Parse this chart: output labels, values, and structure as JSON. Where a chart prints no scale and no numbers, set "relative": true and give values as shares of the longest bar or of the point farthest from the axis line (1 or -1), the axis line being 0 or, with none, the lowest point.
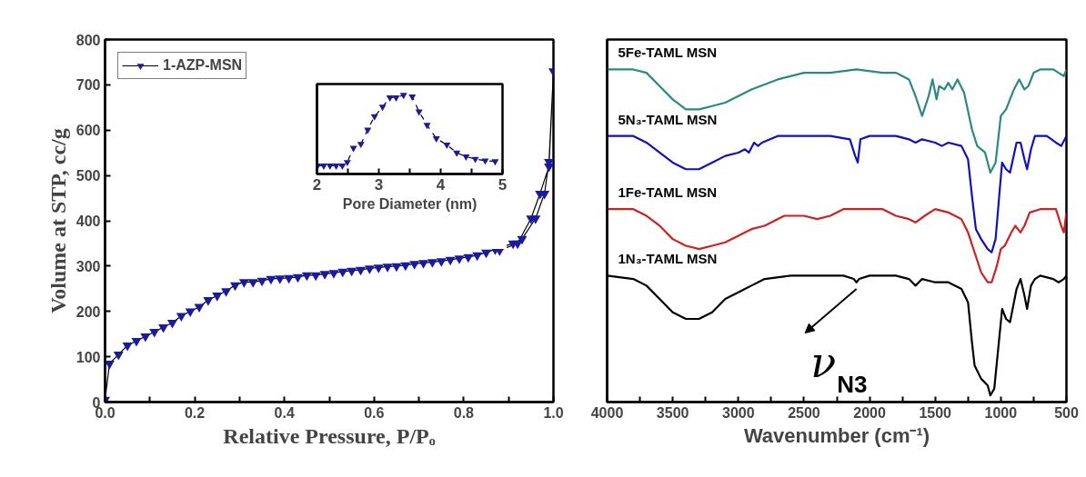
{
  "chart_data": [
    {
      "type": "line",
      "xlabel": "Relative Pressure, P/Pₒ",
      "ylabel": "Volume at STP, cc/g",
      "x": [
        0.0,
        0.01,
        0.03,
        0.05,
        0.07,
        0.09,
        0.11,
        0.13,
        0.15,
        0.17,
        0.19,
        0.21,
        0.23,
        0.25,
        0.27,
        0.29,
        0.31,
        0.33,
        0.35,
        0.37,
        0.39,
        0.41,
        0.43,
        0.45,
        0.47,
        0.49,
        0.51,
        0.53,
        0.55,
        0.57,
        0.59,
        0.61,
        0.63,
        0.65,
        0.67,
        0.69,
        0.71,
        0.73,
        0.75,
        0.77,
        0.79,
        0.81,
        0.83,
        0.85,
        0.87,
        0.91,
        0.93,
        0.96,
        0.98,
        0.99,
        1.0,
        0.99,
        0.97,
        0.95,
        0.92,
        0.88
      ],
      "series": [
        {
          "name": "1-AZP-MSN",
          "color": "#1a1a9c",
          "values": [
            5,
            85,
            105,
            125,
            135,
            145,
            155,
            165,
            175,
            190,
            200,
            210,
            225,
            235,
            245,
            258,
            265,
            265,
            268,
            272,
            273,
            274,
            276,
            280,
            280,
            283,
            285,
            288,
            290,
            292,
            295,
            297,
            299,
            300,
            302,
            305,
            307,
            309,
            311,
            314,
            317,
            320,
            324,
            330,
            337,
            350,
            360,
            405,
            460,
            530,
            730,
            520,
            460,
            405,
            350,
            335
          ]
        }
      ],
      "xlim": [
        0,
        1.0
      ],
      "ylim": [
        0,
        800
      ],
      "xticks": [
        {
          "value": 0,
          "label": "0.0"
        },
        {
          "value": 0.1,
          "label": null
        },
        0.2,
        {
          "value": 0.3,
          "label": null
        },
        0.4,
        {
          "value": 0.5,
          "label": null
        },
        0.6,
        {
          "value": 0.7,
          "label": null
        },
        0.8,
        {
          "value": 0.9,
          "label": null
        },
        {
          "value": 1.0,
          "label": "1.0"
        }
      ],
      "yticks": [
        0,
        100,
        200,
        300,
        400,
        500,
        600,
        700,
        800
      ],
      "grid": false,
      "legend": "top left",
      "marker": "triangle",
      "line_style": "solid"
    },
    {
      "type": "line",
      "xlabel": "Pore Diameter (nm)",
      "relative": true,
      "tick_labels": "x",
      "x": [
        2.01,
        2.11,
        2.21,
        2.31,
        2.41,
        2.49,
        2.59,
        2.71,
        2.82,
        2.93,
        3.06,
        3.18,
        3.28,
        3.4,
        3.54,
        3.65,
        3.78,
        3.93,
        4.1,
        4.26,
        4.41,
        4.56,
        4.72,
        4.88
      ],
      "series": [
        {
          "color": "#1a1a9c",
          "values": [
            0.106,
            0.106,
            0.106,
            0.106,
            0.106,
            0.15,
            0.33,
            0.38,
            0.56,
            0.73,
            0.85,
            0.97,
            0.97,
            1.0,
            0.98,
            0.79,
            0.62,
            0.45,
            0.37,
            0.27,
            0.22,
            0.19,
            0.17,
            0.16
          ]
        }
      ],
      "xlim": [
        2,
        5
      ],
      "xticks": [
        2,
        {
          "value": 2.5,
          "label": null
        },
        3,
        {
          "value": 3.5,
          "label": null
        },
        4,
        {
          "value": 4.5,
          "label": null
        },
        5
      ],
      "grid": false,
      "marker": "triangle",
      "line_style": "dashed"
    },
    {
      "type": "line",
      "xlabel": "Wavenumber (cm⁻¹)",
      "relative": true,
      "tick_labels": "x",
      "xlim": [
        4000,
        500
      ],
      "xticks": [
        4000,
        {
          "value": 3750,
          "label": null
        },
        3500,
        {
          "value": 3250,
          "label": null
        },
        3000,
        {
          "value": 2750,
          "label": null
        },
        2500,
        {
          "value": 2250,
          "label": null
        },
        2000,
        {
          "value": 1750,
          "label": null
        },
        1500,
        {
          "value": 1250,
          "label": null
        },
        1000,
        {
          "value": 750,
          "label": null
        },
        500
      ],
      "series": [
        {
          "name": "5Fe-TAML MSN",
          "color": "#2a8a80",
          "x": [
            4000,
            3800,
            3700,
            3600,
            3500,
            3400,
            3300,
            3200,
            3100,
            3000,
            2900,
            2700,
            2500,
            2300,
            2100,
            1900,
            1800,
            1700,
            1650,
            1600,
            1550,
            1520,
            1490,
            1470,
            1430,
            1400,
            1370,
            1330,
            1280,
            1220,
            1180,
            1120,
            1080,
            1040,
            1000,
            960,
            900,
            860,
            820,
            790,
            750,
            700,
            600,
            560,
            520,
            500
          ],
          "values": [
            1.0,
            1.0,
            0.99,
            0.95,
            0.91,
            0.88,
            0.88,
            0.89,
            0.9,
            0.92,
            0.94,
            0.97,
            0.99,
            0.99,
            1.0,
            0.99,
            0.99,
            0.97,
            0.92,
            0.86,
            0.92,
            0.97,
            0.91,
            0.95,
            0.94,
            0.96,
            0.94,
            0.97,
            0.93,
            0.82,
            0.77,
            0.75,
            0.69,
            0.72,
            0.86,
            0.88,
            0.94,
            0.97,
            0.94,
            0.95,
            0.99,
            1.0,
            1.0,
            0.99,
            0.98,
            1.0
          ]
        },
        {
          "name": "5N₃-TAML MSN",
          "color": "#1010c0",
          "x": [
            4000,
            3800,
            3700,
            3600,
            3500,
            3400,
            3300,
            3200,
            3100,
            3000,
            2950,
            2920,
            2880,
            2850,
            2820,
            2700,
            2500,
            2300,
            2150,
            2110,
            2090,
            2070,
            2000,
            1800,
            1700,
            1650,
            1600,
            1500,
            1450,
            1400,
            1300,
            1250,
            1220,
            1190,
            1150,
            1100,
            1070,
            1040,
            1010,
            990,
            960,
            930,
            880,
            850,
            820,
            800,
            770,
            740,
            650,
            580,
            540,
            500
          ],
          "values": [
            0.8,
            0.8,
            0.78,
            0.75,
            0.72,
            0.7,
            0.7,
            0.72,
            0.74,
            0.75,
            0.76,
            0.75,
            0.78,
            0.77,
            0.78,
            0.8,
            0.8,
            0.8,
            0.79,
            0.74,
            0.72,
            0.79,
            0.8,
            0.8,
            0.79,
            0.78,
            0.79,
            0.78,
            0.77,
            0.78,
            0.77,
            0.73,
            0.62,
            0.52,
            0.49,
            0.46,
            0.45,
            0.49,
            0.63,
            0.72,
            0.7,
            0.69,
            0.78,
            0.78,
            0.73,
            0.7,
            0.76,
            0.8,
            0.8,
            0.78,
            0.77,
            0.8
          ]
        },
        {
          "name": "1Fe-TAML MSN",
          "color": "#d02020",
          "x": [
            4000,
            3800,
            3700,
            3600,
            3500,
            3400,
            3300,
            3200,
            3100,
            3000,
            2900,
            2800,
            2650,
            2500,
            2400,
            2300,
            2200,
            2100,
            1900,
            1800,
            1700,
            1650,
            1580,
            1500,
            1400,
            1300,
            1250,
            1200,
            1150,
            1100,
            1070,
            1030,
            1000,
            970,
            920,
            890,
            850,
            820,
            780,
            700,
            580,
            540,
            520,
            500
          ],
          "values": [
            0.58,
            0.58,
            0.56,
            0.53,
            0.49,
            0.47,
            0.46,
            0.47,
            0.48,
            0.5,
            0.52,
            0.53,
            0.56,
            0.56,
            0.55,
            0.56,
            0.58,
            0.58,
            0.58,
            0.56,
            0.55,
            0.54,
            0.56,
            0.58,
            0.57,
            0.55,
            0.51,
            0.45,
            0.39,
            0.36,
            0.36,
            0.41,
            0.46,
            0.47,
            0.51,
            0.53,
            0.51,
            0.53,
            0.57,
            0.58,
            0.58,
            0.53,
            0.51,
            0.57
          ]
        },
        {
          "name": "1N₃-TAML MSN",
          "color": "#000000",
          "x": [
            4000,
            3800,
            3700,
            3600,
            3500,
            3400,
            3300,
            3200,
            3100,
            3000,
            2950,
            2900,
            2800,
            2600,
            2200,
            2120,
            2100,
            2080,
            2000,
            1800,
            1700,
            1650,
            1600,
            1500,
            1400,
            1300,
            1250,
            1220,
            1200,
            1150,
            1100,
            1080,
            1050,
            1020,
            990,
            960,
            930,
            880,
            850,
            820,
            800,
            770,
            740,
            700,
            600,
            560,
            520,
            500
          ],
          "values": [
            0.38,
            0.37,
            0.35,
            0.31,
            0.27,
            0.25,
            0.25,
            0.27,
            0.31,
            0.33,
            0.34,
            0.35,
            0.37,
            0.38,
            0.38,
            0.37,
            0.36,
            0.37,
            0.38,
            0.38,
            0.37,
            0.35,
            0.37,
            0.36,
            0.36,
            0.34,
            0.3,
            0.18,
            0.11,
            0.07,
            0.05,
            0.02,
            0.04,
            0.16,
            0.28,
            0.25,
            0.24,
            0.34,
            0.37,
            0.32,
            0.28,
            0.35,
            0.37,
            0.38,
            0.37,
            0.36,
            0.37,
            0.38
          ]
        }
      ],
      "annotations": [
        {
          "text": "ν$_{N3}$",
          "x": 2100,
          "y": 0.36
        }
      ],
      "grid": false,
      "line_style": "solid"
    }
  ]
}
